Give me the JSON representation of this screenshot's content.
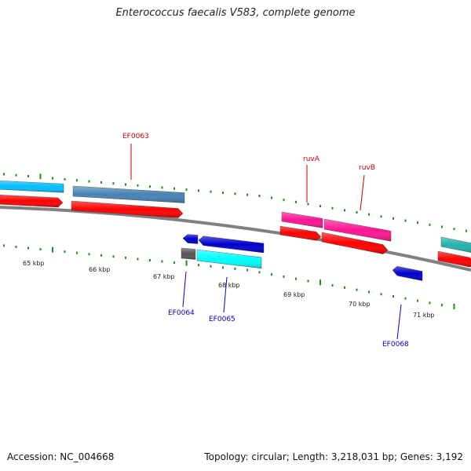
{
  "title": "Enterococcus faecalis V583, complete genome",
  "footer": {
    "accession": "Accession: NC_004668",
    "topology": "Topology: circular; Length: 3,218,031 bp; Genes: 3,192"
  },
  "colors": {
    "backbone": "#808080",
    "tick": "#228b22",
    "label_forward": "#cc0000",
    "label_reverse": "#0000cc",
    "cds": "#ff0000",
    "gene_ef0063": "#4682b4",
    "gene_ruv": "#ff1493",
    "gene_light": "#00bfff",
    "gene_cyan": "#00ffff",
    "gene_blue": "#0000cd",
    "gene_grey": "#555555",
    "gene_teal": "#20b2aa"
  },
  "scale": {
    "unit": "kbp",
    "ticks": [
      {
        "pos": 65,
        "label": "65 kbp"
      },
      {
        "pos": 66,
        "label": "66 kbp"
      },
      {
        "pos": 67,
        "label": "67 kbp"
      },
      {
        "pos": 68,
        "label": "68 kbp"
      },
      {
        "pos": 69,
        "label": "69 kbp"
      },
      {
        "pos": 70,
        "label": "70 kbp"
      },
      {
        "pos": 71,
        "label": "71 kbp"
      }
    ]
  },
  "gene_labels": {
    "top": [
      {
        "id": "EF0063",
        "label": "EF0063"
      },
      {
        "id": "ruvA",
        "label": "ruvA"
      },
      {
        "id": "ruvB",
        "label": "ruvB"
      }
    ],
    "bottom": [
      {
        "id": "EF0064",
        "label": "EF0064"
      },
      {
        "id": "EF0065",
        "label": "EF0065"
      },
      {
        "id": "EF0068",
        "label": "EF0068"
      }
    ]
  }
}
